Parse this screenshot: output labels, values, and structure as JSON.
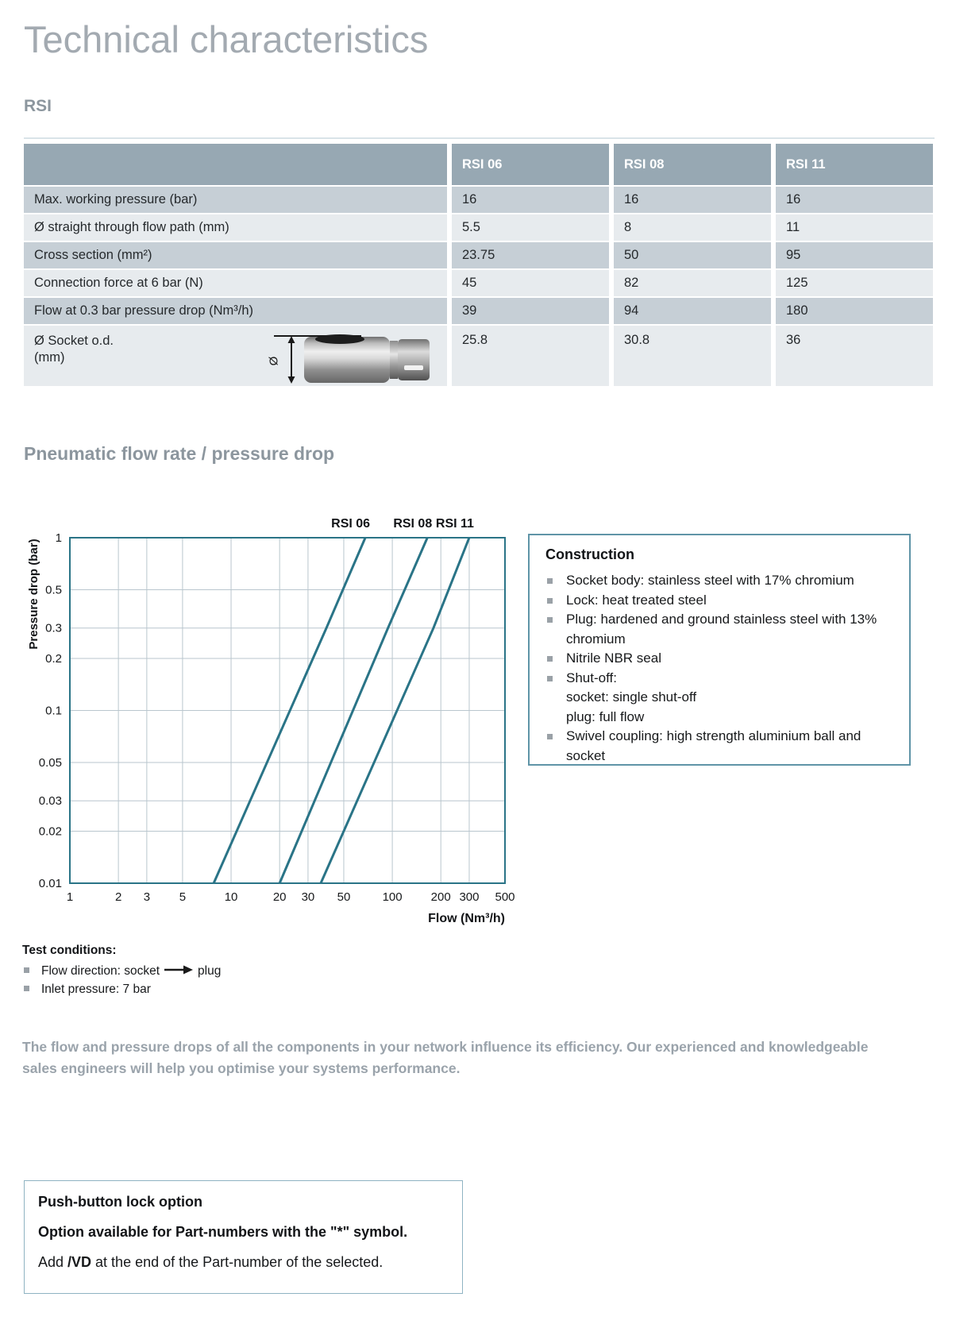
{
  "page": {
    "title": "Technical characteristics",
    "rsi_heading": "RSI",
    "chart_heading": "Pneumatic flow rate / pressure drop"
  },
  "table": {
    "columns": [
      "RSI 06",
      "RSI 08",
      "RSI 11"
    ],
    "rows": [
      {
        "label": "Max. working pressure (bar)",
        "values": [
          "16",
          "16",
          "16"
        ]
      },
      {
        "label": "Ø straight through flow path (mm)",
        "values": [
          "5.5",
          "8",
          "11"
        ]
      },
      {
        "label": "Cross section (mm²)",
        "values": [
          "23.75",
          "50",
          "95"
        ]
      },
      {
        "label": "Connection force at 6 bar (N)",
        "values": [
          "45",
          "82",
          "125"
        ]
      },
      {
        "label": "Flow at 0.3 bar pressure drop (Nm³/h)",
        "values": [
          "39",
          "94",
          "180"
        ]
      },
      {
        "label": "Ø Socket o.d.",
        "label_line2": "(mm)",
        "values": [
          "25.8",
          "30.8",
          "36"
        ],
        "has_photo": true,
        "dimension_symbol": "Ø"
      }
    ]
  },
  "chart_data": {
    "type": "line",
    "title": "Pneumatic flow rate / pressure drop",
    "xlabel": "Flow (Nm³/h)",
    "ylabel": "Pressure drop (bar)",
    "x_scale": "log",
    "y_scale": "log",
    "xlim": [
      1,
      500
    ],
    "ylim": [
      0.01,
      1
    ],
    "x_ticks": [
      1,
      2,
      3,
      5,
      10,
      20,
      30,
      50,
      100,
      200,
      300,
      500
    ],
    "y_ticks": [
      1,
      0.5,
      0.3,
      0.2,
      0.1,
      0.05,
      0.03,
      0.02,
      0.01
    ],
    "grid": true,
    "legend_position": "top",
    "series": [
      {
        "name": "RSI 06",
        "points": [
          [
            7.8,
            0.01
          ],
          [
            39,
            0.3
          ],
          [
            68,
            1
          ]
        ]
      },
      {
        "name": "RSI 08",
        "points": [
          [
            20,
            0.01
          ],
          [
            94,
            0.3
          ],
          [
            165,
            1
          ]
        ]
      },
      {
        "name": "RSI 11",
        "points": [
          [
            36,
            0.01
          ],
          [
            180,
            0.3
          ],
          [
            300,
            1
          ]
        ]
      }
    ]
  },
  "construction": {
    "title": "Construction",
    "items": [
      {
        "text": "Socket body: stainless steel with 17% chromium"
      },
      {
        "text": "Lock: heat treated steel"
      },
      {
        "text": "Plug: hardened and ground stainless steel with 13% chromium"
      },
      {
        "text": "Nitrile NBR seal"
      },
      {
        "text": "Shut-off:",
        "sub": [
          "socket: single shut-off",
          "plug: full flow"
        ]
      },
      {
        "text": "Swivel coupling: high strength aluminium ball and socket"
      }
    ]
  },
  "test_conditions": {
    "title": "Test conditions:",
    "items": [
      {
        "before_arrow": "Flow direction: socket",
        "after_arrow": "plug"
      },
      {
        "text": "Inlet pressure: 7 bar"
      }
    ]
  },
  "paragraph": {
    "lines": [
      "The flow and pressure drops of all the components in your network influence its efficiency. Our experienced and knowledgeable",
      "sales engineers will help you optimise your systems performance."
    ]
  },
  "push_option": {
    "title": "Push-button lock option",
    "line2": "Option available for Part-numbers with the \"*\" symbol.",
    "line3_prefix": "Add ",
    "line3_bold": "/VD",
    "line3_suffix": " at the end of the Part-number of the selected."
  },
  "colors": {
    "accent_teal": "#2a7487",
    "grid_line": "#b9c6ce",
    "table_header_bg": "#97a8b3",
    "table_row_dark": "#c6cfd6",
    "table_row_light": "#e7ebee",
    "heading_gray": "#8c969e",
    "title_gray": "#a3aab1",
    "paragraph_gray": "#9aa3ab",
    "bullet_gray": "#9aa1a7",
    "construction_border": "#5f94a7",
    "push_box_border": "#8fb3c2"
  }
}
